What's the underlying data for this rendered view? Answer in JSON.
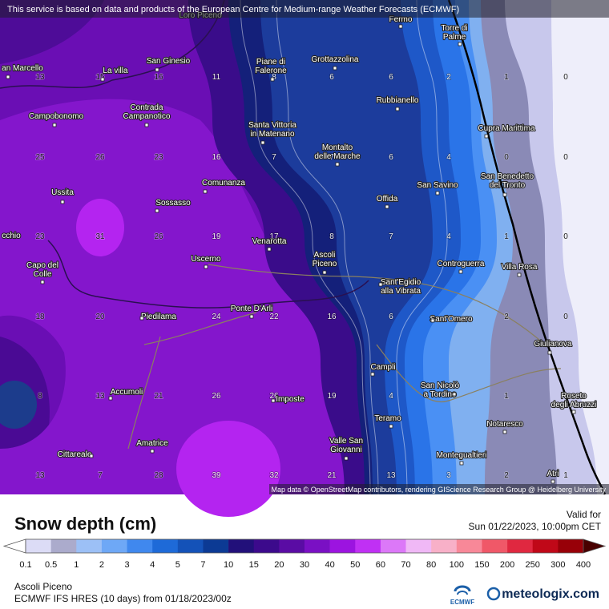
{
  "notice": "This service is based on data and products of the European Centre for Medium-range Weather Forecasts (ECMWF)",
  "attribution": "Map data © OpenStreetMap contributors, rendering GIScience Research Group @ Heidelberg University",
  "places": [
    {
      "lines": [
        "Loro Piceno"
      ]
    },
    {
      "lines": [
        "Fermo"
      ]
    },
    {
      "lines": [
        "Torre di",
        "Palme"
      ]
    },
    {
      "lines": [
        "an Marcello"
      ]
    },
    {
      "lines": [
        "La villa"
      ]
    },
    {
      "lines": [
        "San Ginesio"
      ]
    },
    {
      "lines": [
        "Piane di",
        "Falerone"
      ]
    },
    {
      "lines": [
        "Grottazzolina"
      ]
    },
    {
      "lines": [
        "Rubbianello"
      ]
    },
    {
      "lines": [
        "Cupra Marittima"
      ]
    },
    {
      "lines": [
        "Contrada",
        "Campanotico"
      ]
    },
    {
      "lines": [
        "Campobonomo"
      ]
    },
    {
      "lines": [
        "Santa Vittoria",
        "in Matenano"
      ]
    },
    {
      "lines": [
        "Montalto",
        "delle Marche"
      ]
    },
    {
      "lines": [
        "Comunanza"
      ]
    },
    {
      "lines": [
        "San Savino"
      ]
    },
    {
      "lines": [
        "San Benedetto",
        "del Tronto"
      ]
    },
    {
      "lines": [
        "Ussita"
      ]
    },
    {
      "lines": [
        "Sossasso"
      ]
    },
    {
      "lines": [
        "Offida"
      ]
    },
    {
      "lines": [
        "cchio"
      ]
    },
    {
      "lines": [
        "Venarotta"
      ]
    },
    {
      "lines": [
        "Ascoli",
        "Piceno"
      ]
    },
    {
      "lines": [
        "Uscerno"
      ]
    },
    {
      "lines": [
        "Controguerra"
      ]
    },
    {
      "lines": [
        "Villa Rosa"
      ]
    },
    {
      "lines": [
        "Capo del",
        "Colle"
      ]
    },
    {
      "lines": [
        "Sant'Egidio",
        "alla Vibrata"
      ]
    },
    {
      "lines": [
        "Piedilama"
      ]
    },
    {
      "lines": [
        "Ponte D'Arli"
      ]
    },
    {
      "lines": [
        "Sant'Omero"
      ]
    },
    {
      "lines": [
        "Giulianova"
      ]
    },
    {
      "lines": [
        "Campli"
      ]
    },
    {
      "lines": [
        "Accumoli"
      ]
    },
    {
      "lines": [
        "San Nicolò",
        "a Tordino"
      ]
    },
    {
      "lines": [
        "Imposte"
      ]
    },
    {
      "lines": [
        "Roseto",
        "degli Abruzzi"
      ]
    },
    {
      "lines": [
        "Teramo"
      ]
    },
    {
      "lines": [
        "Notaresco"
      ]
    },
    {
      "lines": [
        "Amatrice"
      ]
    },
    {
      "lines": [
        "Valle San",
        "Giovanni"
      ]
    },
    {
      "lines": [
        "Cittareale"
      ]
    },
    {
      "lines": [
        "Montegualtieri"
      ]
    },
    {
      "lines": [
        "Atri"
      ]
    }
  ],
  "grid_values": [
    [
      "13",
      "15",
      "16",
      "11",
      "8",
      "6",
      "6",
      "2",
      "1",
      "0"
    ],
    [
      "25",
      "26",
      "23",
      "16",
      "7",
      "7",
      "6",
      "4",
      "0",
      "0"
    ],
    [
      "23",
      "31",
      "26",
      "19",
      "17",
      "8",
      "7",
      "4",
      "1",
      "0"
    ],
    [
      "18",
      "20",
      null,
      "24",
      "22",
      "16",
      "6",
      null,
      "2",
      "0"
    ],
    [
      "8",
      "13",
      "21",
      "26",
      "26",
      "19",
      "4",
      null,
      "1",
      null
    ],
    [
      "13",
      "7",
      "28",
      "39",
      "32",
      "21",
      "13",
      "3",
      "2",
      "1"
    ]
  ],
  "legend": {
    "title": "Snow depth (cm)",
    "labels": [
      "0.1",
      "0.5",
      "1",
      "2",
      "3",
      "4",
      "5",
      "7",
      "10",
      "15",
      "20",
      "30",
      "40",
      "50",
      "60",
      "70",
      "80",
      "100",
      "150",
      "200",
      "250",
      "300",
      "400"
    ],
    "colors": [
      "#ffffff",
      "#dcdcf6",
      "#ababcc",
      "#9cc0f6",
      "#6ea8f6",
      "#4088ee",
      "#1e6ad8",
      "#1452b8",
      "#0c3a94",
      "#22107a",
      "#3c0a8c",
      "#5a0ca4",
      "#7a10c4",
      "#9c14e0",
      "#c030f4",
      "#dc78f8",
      "#f0b8f6",
      "#f8b0c8",
      "#f88898",
      "#f05868",
      "#e02840",
      "#c00818",
      "#980008",
      "#700000",
      "#480000"
    ]
  },
  "valid": {
    "label": "Valid for",
    "time": "Sun 01/22/2023, 10:00pm CET"
  },
  "footer": {
    "location": "Ascoli Piceno",
    "model": "ECMWF IFS HRES (10 days) from 01/18/2023/00z",
    "ecmwf": "ECMWF",
    "brand": "meteologix.com"
  }
}
